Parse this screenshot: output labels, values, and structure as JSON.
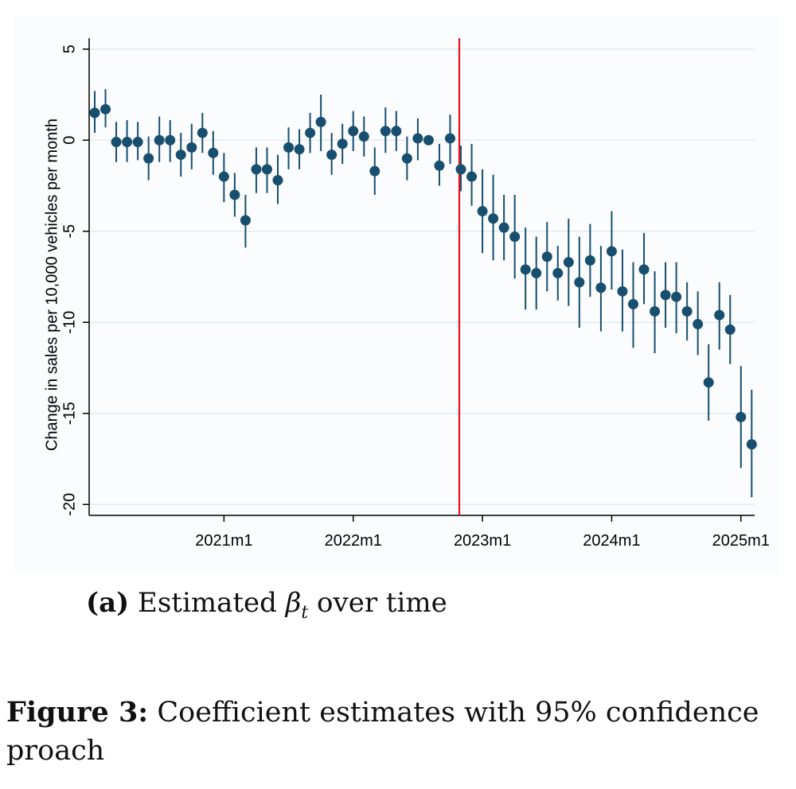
{
  "chart_data": {
    "type": "scatter",
    "subtype": "coefficient plot with 95% confidence intervals",
    "ylabel": "Change in sales per 10,000 vehicles per month",
    "xlabel": "",
    "ylim": [
      -20.6,
      5.6
    ],
    "yticks": [
      5,
      0,
      -5,
      -10,
      -15,
      -20
    ],
    "ytick_labels": [
      "5",
      "0",
      "-5",
      "-10",
      "-15",
      "-20"
    ],
    "xticks": [
      "2021m1",
      "2022m1",
      "2023m1",
      "2024m1",
      "2025m1"
    ],
    "xtick_positions": [
      12,
      24,
      36,
      48,
      60
    ],
    "xlim": [
      -0.5,
      61.5
    ],
    "grid": true,
    "reference_line": {
      "x": 34,
      "color": "#e8121c"
    },
    "colors": {
      "point": "#184e6e",
      "ci": "#184e6e",
      "grid": "#e2ecf1",
      "panel": "#fafcfd"
    },
    "points": [
      {
        "t": 0,
        "y": 1.5,
        "lo": 0.4,
        "hi": 2.7
      },
      {
        "t": 1,
        "y": 1.7,
        "lo": 0.7,
        "hi": 2.8
      },
      {
        "t": 2,
        "y": -0.1,
        "lo": -1.2,
        "hi": 1.0
      },
      {
        "t": 3,
        "y": -0.1,
        "lo": -1.2,
        "hi": 1.1
      },
      {
        "t": 4,
        "y": -0.1,
        "lo": -1.1,
        "hi": 1.0
      },
      {
        "t": 5,
        "y": -1.0,
        "lo": -2.2,
        "hi": 0.2
      },
      {
        "t": 6,
        "y": 0.0,
        "lo": -1.2,
        "hi": 1.3
      },
      {
        "t": 7,
        "y": 0.0,
        "lo": -1.2,
        "hi": 1.1
      },
      {
        "t": 8,
        "y": -0.8,
        "lo": -2.0,
        "hi": 0.4
      },
      {
        "t": 9,
        "y": -0.4,
        "lo": -1.6,
        "hi": 0.9
      },
      {
        "t": 10,
        "y": 0.4,
        "lo": -0.7,
        "hi": 1.5
      },
      {
        "t": 11,
        "y": -0.7,
        "lo": -1.9,
        "hi": 0.5
      },
      {
        "t": 12,
        "y": -2.0,
        "lo": -3.4,
        "hi": -0.7
      },
      {
        "t": 13,
        "y": -3.0,
        "lo": -4.2,
        "hi": -1.8
      },
      {
        "t": 14,
        "y": -4.4,
        "lo": -5.9,
        "hi": -3.0
      },
      {
        "t": 15,
        "y": -1.6,
        "lo": -2.9,
        "hi": -0.4
      },
      {
        "t": 16,
        "y": -1.6,
        "lo": -2.9,
        "hi": -0.4
      },
      {
        "t": 17,
        "y": -2.2,
        "lo": -3.5,
        "hi": -0.8
      },
      {
        "t": 18,
        "y": -0.4,
        "lo": -1.6,
        "hi": 0.7
      },
      {
        "t": 19,
        "y": -0.5,
        "lo": -1.6,
        "hi": 0.6
      },
      {
        "t": 20,
        "y": 0.4,
        "lo": -0.7,
        "hi": 1.5
      },
      {
        "t": 21,
        "y": 1.0,
        "lo": -0.6,
        "hi": 2.5
      },
      {
        "t": 22,
        "y": -0.8,
        "lo": -1.9,
        "hi": 0.4
      },
      {
        "t": 23,
        "y": -0.2,
        "lo": -1.3,
        "hi": 0.9
      },
      {
        "t": 24,
        "y": 0.5,
        "lo": -0.6,
        "hi": 1.6
      },
      {
        "t": 25,
        "y": 0.2,
        "lo": -0.9,
        "hi": 1.3
      },
      {
        "t": 26,
        "y": -1.7,
        "lo": -3.0,
        "hi": -0.4
      },
      {
        "t": 27,
        "y": 0.5,
        "lo": -0.7,
        "hi": 1.8
      },
      {
        "t": 28,
        "y": 0.5,
        "lo": -0.6,
        "hi": 1.6
      },
      {
        "t": 29,
        "y": -1.0,
        "lo": -2.2,
        "hi": 0.2
      },
      {
        "t": 30,
        "y": 0.1,
        "lo": -1.1,
        "hi": 1.2
      },
      {
        "t": 31,
        "y": 0.0,
        "lo": 0.0,
        "hi": 0.0
      },
      {
        "t": 32,
        "y": -1.4,
        "lo": -2.5,
        "hi": -0.2
      },
      {
        "t": 33,
        "y": 0.1,
        "lo": -1.3,
        "hi": 1.4
      },
      {
        "t": 34,
        "y": -1.6,
        "lo": -2.8,
        "hi": -0.3
      },
      {
        "t": 35,
        "y": -2.0,
        "lo": -3.6,
        "hi": -0.2
      },
      {
        "t": 36,
        "y": -3.9,
        "lo": -6.2,
        "hi": -1.6
      },
      {
        "t": 37,
        "y": -4.3,
        "lo": -6.6,
        "hi": -1.9
      },
      {
        "t": 38,
        "y": -4.8,
        "lo": -6.6,
        "hi": -3.0
      },
      {
        "t": 39,
        "y": -5.3,
        "lo": -7.6,
        "hi": -3.0
      },
      {
        "t": 40,
        "y": -7.1,
        "lo": -9.3,
        "hi": -4.8
      },
      {
        "t": 41,
        "y": -7.3,
        "lo": -9.3,
        "hi": -5.3
      },
      {
        "t": 42,
        "y": -6.4,
        "lo": -8.3,
        "hi": -4.5
      },
      {
        "t": 43,
        "y": -7.3,
        "lo": -8.8,
        "hi": -5.8
      },
      {
        "t": 44,
        "y": -6.7,
        "lo": -9.1,
        "hi": -4.3
      },
      {
        "t": 45,
        "y": -7.8,
        "lo": -10.3,
        "hi": -5.3
      },
      {
        "t": 46,
        "y": -6.6,
        "lo": -8.6,
        "hi": -4.6
      },
      {
        "t": 47,
        "y": -8.1,
        "lo": -10.5,
        "hi": -5.8
      },
      {
        "t": 48,
        "y": -6.1,
        "lo": -8.2,
        "hi": -3.9
      },
      {
        "t": 49,
        "y": -8.3,
        "lo": -10.5,
        "hi": -6.0
      },
      {
        "t": 50,
        "y": -9.0,
        "lo": -11.4,
        "hi": -6.7
      },
      {
        "t": 51,
        "y": -7.1,
        "lo": -9.0,
        "hi": -5.1
      },
      {
        "t": 52,
        "y": -9.4,
        "lo": -11.7,
        "hi": -7.2
      },
      {
        "t": 53,
        "y": -8.5,
        "lo": -10.3,
        "hi": -6.7
      },
      {
        "t": 54,
        "y": -8.6,
        "lo": -10.6,
        "hi": -6.7
      },
      {
        "t": 55,
        "y": -9.4,
        "lo": -11.0,
        "hi": -7.8
      },
      {
        "t": 56,
        "y": -10.1,
        "lo": -11.8,
        "hi": -8.3
      },
      {
        "t": 57,
        "y": -13.3,
        "lo": -15.4,
        "hi": -11.2
      },
      {
        "t": 58,
        "y": -9.6,
        "lo": -11.5,
        "hi": -7.8
      },
      {
        "t": 59,
        "y": -10.4,
        "lo": -12.3,
        "hi": -8.5
      },
      {
        "t": 60,
        "y": -15.2,
        "lo": -18.0,
        "hi": -12.4
      },
      {
        "t": 61,
        "y": -16.7,
        "lo": -19.6,
        "hi": -13.7
      }
    ]
  },
  "captions": {
    "sub_label": "(a)",
    "sub_text_pre": "Estimated",
    "sub_beta": "β",
    "sub_index": "t",
    "sub_text_post": "over time",
    "fig_label": "Figure 3:",
    "fig_text": "Coefficient estimates with 95% confidence",
    "fig_line2": "proach"
  }
}
